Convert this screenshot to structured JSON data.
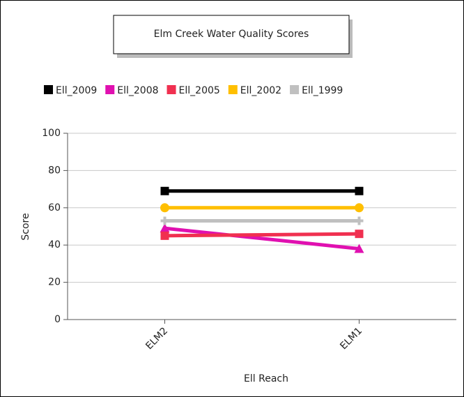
{
  "chart_data": {
    "type": "line",
    "title": "Elm Creek Water Quality Scores",
    "categories": [
      "ELM2",
      "ELM1"
    ],
    "series": [
      {
        "name": "Ell_2009",
        "color": "#000000",
        "marker": "square",
        "values": [
          69,
          69
        ]
      },
      {
        "name": "Ell_2008",
        "color": "#e010b0",
        "marker": "triangle",
        "values": [
          49,
          38
        ]
      },
      {
        "name": "Ell_2005",
        "color": "#f03050",
        "marker": "square",
        "values": [
          45,
          46
        ]
      },
      {
        "name": "Ell_2002",
        "color": "#ffbf00",
        "marker": "circle",
        "values": [
          60,
          60
        ]
      },
      {
        "name": "Ell_1999",
        "color": "#c0c0c0",
        "marker": "cross",
        "values": [
          53,
          53
        ]
      }
    ],
    "xlabel": "Ell Reach",
    "ylabel": "Score",
    "ylim": [
      0,
      100
    ],
    "yticks": [
      0,
      20,
      40,
      60,
      80,
      100
    ],
    "grid": true
  }
}
